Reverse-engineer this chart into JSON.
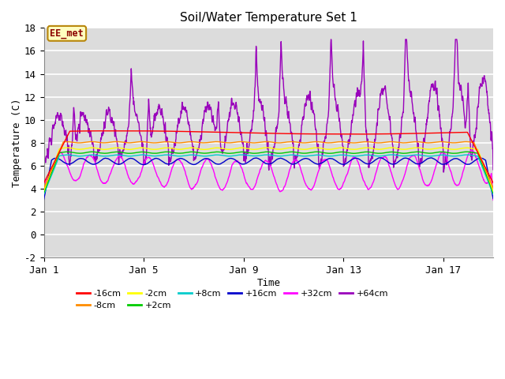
{
  "title": "Soil/Water Temperature Set 1",
  "xlabel": "Time",
  "ylabel": "Temperature (C)",
  "ylim": [
    -2,
    18
  ],
  "xlim": [
    0,
    18
  ],
  "xticks": [
    0,
    4,
    8,
    12,
    16
  ],
  "xticklabels": [
    "Jan 1",
    "Jan 5",
    "Jan 9",
    "Jan 13",
    "Jan 17"
  ],
  "yticks": [
    -2,
    0,
    2,
    4,
    6,
    8,
    10,
    12,
    14,
    16,
    18
  ],
  "background_color": "#dcdcdc",
  "plot_bg_color": "#dcdcdc",
  "annotation_text": "EE_met",
  "annotation_color": "#8b0000",
  "annotation_bg": "#ffffc0",
  "annotation_border": "#b8860b",
  "colors": {
    "-16cm": "#ff0000",
    "-8cm": "#ff8c00",
    "-2cm": "#ffff00",
    "+2cm": "#00cc00",
    "+8cm": "#00cccc",
    "+16cm": "#0000cc",
    "+32cm": "#ff00ff",
    "+64cm": "#9900bb"
  },
  "legend_order": [
    "-16cm",
    "-8cm",
    "-2cm",
    "+2cm",
    "+8cm",
    "+16cm",
    "+32cm",
    "+64cm"
  ]
}
